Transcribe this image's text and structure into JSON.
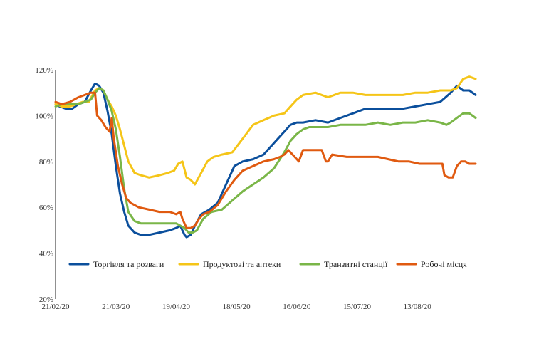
{
  "chart_data": {
    "type": "line",
    "title": "",
    "xlabel": "",
    "ylabel": "",
    "ylim": [
      20,
      120
    ],
    "y_ticks": [
      "20%",
      "40%",
      "60%",
      "80%",
      "100%",
      "120%"
    ],
    "y_tick_values": [
      20,
      40,
      60,
      80,
      100,
      120
    ],
    "x_ticks": [
      "21/02/20",
      "21/03/20",
      "19/04/20",
      "18/05/20",
      "16/06/20",
      "15/07/20",
      "13/08/20"
    ],
    "x_tick_days": [
      0,
      29,
      58,
      87,
      116,
      145,
      174
    ],
    "x_range_days": [
      0,
      202
    ],
    "grid": false,
    "legend_position": "inside-bottom",
    "series": [
      {
        "name": "Торгівля та розваги",
        "color": "#0b4f9c",
        "x": [
          0,
          2,
          5,
          8,
          11,
          14,
          17,
          19,
          21,
          23,
          25,
          27,
          29,
          31,
          33,
          35,
          38,
          41,
          45,
          50,
          55,
          58,
          60,
          62,
          63,
          65,
          67,
          70,
          74,
          78,
          82,
          86,
          90,
          95,
          100,
          105,
          110,
          113,
          116,
          119,
          125,
          131,
          137,
          143,
          149,
          155,
          161,
          167,
          173,
          179,
          185,
          190,
          193,
          196,
          199,
          202
        ],
        "values": [
          105,
          104,
          103,
          103,
          105,
          106,
          111,
          114,
          113,
          110,
          102,
          92,
          78,
          66,
          58,
          52,
          49,
          48,
          48,
          49,
          50,
          51,
          52,
          48,
          47,
          48,
          52,
          57,
          59,
          62,
          70,
          78,
          80,
          81,
          83,
          88,
          93,
          96,
          97,
          97,
          98,
          97,
          99,
          101,
          103,
          103,
          103,
          103,
          104,
          105,
          106,
          110,
          113,
          111,
          111,
          109
        ]
      },
      {
        "name": "Продуктові та аптеки",
        "color": "#f5c518",
        "x": [
          0,
          3,
          7,
          10,
          13,
          16,
          19,
          21,
          23,
          25,
          27,
          29,
          31,
          33,
          35,
          38,
          41,
          45,
          50,
          54,
          57,
          59,
          61,
          63,
          65,
          67,
          70,
          73,
          76,
          80,
          85,
          90,
          95,
          100,
          105,
          110,
          113,
          116,
          119,
          125,
          131,
          137,
          143,
          149,
          155,
          161,
          167,
          173,
          179,
          185,
          190,
          193,
          196,
          199,
          202
        ],
        "values": [
          105,
          104,
          104,
          105,
          106,
          106,
          111,
          112,
          111,
          107,
          104,
          100,
          94,
          87,
          80,
          75,
          74,
          73,
          74,
          75,
          76,
          79,
          80,
          73,
          72,
          70,
          75,
          80,
          82,
          83,
          84,
          90,
          96,
          98,
          100,
          101,
          104,
          107,
          109,
          110,
          108,
          110,
          110,
          109,
          109,
          109,
          109,
          110,
          110,
          111,
          111,
          112,
          116,
          117,
          116
        ]
      },
      {
        "name": "Транзитні станції",
        "color": "#7ab648",
        "x": [
          0,
          3,
          7,
          11,
          14,
          17,
          19,
          21,
          23,
          25,
          27,
          29,
          31,
          33,
          35,
          38,
          41,
          45,
          50,
          55,
          58,
          60,
          62,
          64,
          66,
          68,
          71,
          75,
          80,
          85,
          90,
          95,
          100,
          105,
          110,
          113,
          116,
          119,
          122,
          125,
          131,
          137,
          143,
          149,
          155,
          161,
          167,
          173,
          179,
          185,
          188,
          190,
          193,
          196,
          199,
          202
        ],
        "values": [
          104,
          105,
          105,
          105,
          106,
          107,
          110,
          112,
          111,
          107,
          102,
          94,
          82,
          68,
          58,
          54,
          53,
          53,
          53,
          53,
          53,
          52,
          51,
          49,
          49,
          50,
          55,
          58,
          59,
          63,
          67,
          70,
          73,
          77,
          84,
          89,
          92,
          94,
          95,
          95,
          95,
          96,
          96,
          96,
          97,
          96,
          97,
          97,
          98,
          97,
          96,
          97,
          99,
          101,
          101,
          99
        ]
      },
      {
        "name": "Робочі місця",
        "color": "#e05a10",
        "x": [
          0,
          3,
          7,
          11,
          14,
          17,
          19,
          20,
          22,
          24,
          26,
          27,
          28,
          30,
          32,
          34,
          36,
          40,
          45,
          50,
          55,
          58,
          60,
          61,
          63,
          65,
          67,
          69,
          71,
          74,
          78,
          82,
          86,
          90,
          95,
          100,
          105,
          108,
          110,
          112,
          115,
          117,
          119,
          122,
          125,
          128,
          130,
          131,
          133,
          140,
          145,
          150,
          155,
          160,
          165,
          170,
          175,
          180,
          186,
          187,
          189,
          191,
          193,
          195,
          197,
          199,
          202
        ],
        "values": [
          106,
          105,
          106,
          108,
          109,
          110,
          110,
          100,
          98,
          95,
          93,
          99,
          90,
          78,
          70,
          64,
          62,
          60,
          59,
          58,
          58,
          57,
          58,
          55,
          51,
          51,
          52,
          55,
          57,
          58,
          61,
          67,
          72,
          76,
          78,
          80,
          81,
          82,
          83,
          85,
          82,
          80,
          85,
          85,
          85,
          85,
          80,
          80,
          83,
          82,
          82,
          82,
          82,
          81,
          80,
          80,
          79,
          79,
          79,
          74,
          73,
          73,
          78,
          80,
          80,
          79,
          79
        ]
      }
    ]
  }
}
